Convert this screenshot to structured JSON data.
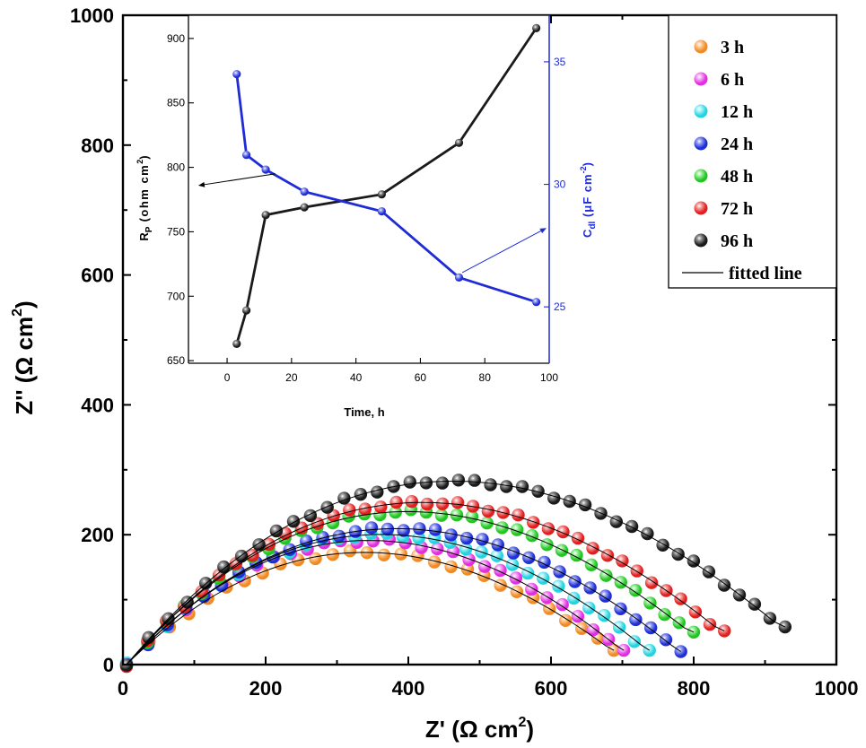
{
  "chart_data": [
    {
      "type": "scatter",
      "xlabel": "Z' (Ω cm",
      "xlabel_sup": "2",
      "xlabel_end": ")",
      "ylabel": "Z'' (Ω cm",
      "ylabel_sup": "2",
      "ylabel_end": ")",
      "xlim": [
        0,
        1000
      ],
      "ylim": [
        0,
        1000
      ],
      "xticks": [
        "0",
        "200",
        "400",
        "600",
        "800",
        "1000"
      ],
      "yticks": [
        "0",
        "200",
        "400",
        "600",
        "800",
        "1000"
      ],
      "xtick_values": [
        0,
        200,
        400,
        600,
        800,
        1000
      ],
      "ytick_values": [
        0,
        200,
        400,
        600,
        800,
        1000
      ],
      "legend_position": "top-right",
      "fit_label": "fitted line",
      "series": [
        {
          "name": "3 h",
          "color": "#f08a24",
          "color_light": "#ffd3a3",
          "peak": 185,
          "end": [
            688,
            22
          ]
        },
        {
          "name": "6 h",
          "color": "#e02ee0",
          "color_light": "#f9b5f9",
          "peak": 205,
          "end": [
            702,
            22
          ]
        },
        {
          "name": "12 h",
          "color": "#22d3e0",
          "color_light": "#b5f6fb",
          "peak": 215,
          "end": [
            738,
            22
          ]
        },
        {
          "name": "24 h",
          "color": "#1e2fd6",
          "color_light": "#9ea7f5",
          "peak": 225,
          "end": [
            782,
            20
          ]
        },
        {
          "name": "48 h",
          "color": "#22c622",
          "color_light": "#a9f3a9",
          "peak": 250,
          "end": [
            800,
            50
          ]
        },
        {
          "name": "72 h",
          "color": "#e21e1e",
          "color_light": "#f7a8a8",
          "peak": 265,
          "end": [
            843,
            52
          ]
        },
        {
          "name": "96 h",
          "color": "#1a1a1a",
          "color_light": "#9a9a9a",
          "peak": 300,
          "end": [
            928,
            58
          ]
        }
      ]
    },
    {
      "type": "line",
      "xlabel": "Time, h",
      "ylabel_left": "R",
      "ylabel_left_sub": "P",
      "ylabel_left_rest": " (ohm cm",
      "ylabel_left_sup": "2",
      "ylabel_left_end": ")",
      "ylabel_right": "C",
      "ylabel_right_sub": "dl",
      "ylabel_right_rest": " (μF cm",
      "ylabel_right_sup": "-2",
      "ylabel_right_end": ")",
      "xlim": [
        -12,
        100
      ],
      "ylim_left": [
        648,
        918
      ],
      "ylim_right": [
        22.7,
        36.9
      ],
      "xticks": [
        "0",
        "20",
        "40",
        "60",
        "80",
        "100"
      ],
      "xtick_values": [
        0,
        20,
        40,
        60,
        80,
        100
      ],
      "yticks_left": [
        "650",
        "700",
        "750",
        "800",
        "850",
        "900"
      ],
      "ytick_left_values": [
        650,
        700,
        750,
        800,
        850,
        900
      ],
      "yticks_right": [
        "25",
        "30",
        "35"
      ],
      "ytick_right_values": [
        25,
        30,
        35
      ],
      "series": [
        {
          "name": "Rp",
          "color": "#1a1a1a",
          "axis": "left",
          "x": [
            3,
            6,
            12,
            24,
            48,
            72,
            96
          ],
          "values": [
            663,
            689,
            763,
            769,
            779,
            819,
            908
          ]
        },
        {
          "name": "Cdl",
          "color": "#1f2bd6",
          "axis": "right",
          "x": [
            3,
            6,
            12,
            24,
            48,
            72,
            96
          ],
          "values": [
            34.5,
            31.2,
            30.6,
            29.7,
            28.9,
            26.2,
            25.2
          ]
        }
      ]
    }
  ]
}
